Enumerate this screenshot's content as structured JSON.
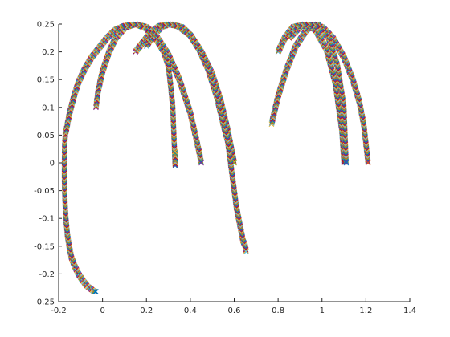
{
  "chart_data": {
    "type": "scatter",
    "title": "",
    "xlabel": "",
    "ylabel": "",
    "xlim": [
      -0.2,
      1.4
    ],
    "ylim": [
      -0.25,
      0.25
    ],
    "xticks": [
      "-0.2",
      "0",
      "0.2",
      "0.4",
      "0.6",
      "0.8",
      "1",
      "1.2",
      "1.4"
    ],
    "yticks": [
      "-0.25",
      "-0.2",
      "-0.15",
      "-0.1",
      "-0.05",
      "0",
      "0.05",
      "0.1",
      "0.15",
      "0.2",
      "0.25"
    ],
    "grid": false,
    "legend": "none",
    "marker": "x",
    "marker_colors": [
      "#0072BD",
      "#D95319",
      "#EDB120",
      "#7E2F8E",
      "#77AC30",
      "#4DBEEE",
      "#A2142F"
    ],
    "axis_color": "#262626",
    "series": [
      {
        "x": [
          -0.17,
          -0.173,
          -0.174,
          -0.174,
          -0.172,
          -0.169,
          -0.165,
          -0.16,
          -0.152,
          -0.142,
          -0.128,
          -0.11,
          -0.09,
          -0.07,
          -0.05,
          -0.04,
          -0.03
        ],
        "y": [
          0.05,
          0.03,
          0.0,
          -0.03,
          -0.06,
          -0.09,
          -0.11,
          -0.13,
          -0.15,
          -0.17,
          -0.185,
          -0.2,
          -0.212,
          -0.222,
          -0.228,
          -0.231,
          -0.232
        ]
      },
      {
        "x": [
          -0.17,
          -0.16,
          -0.15,
          -0.13,
          -0.11,
          -0.08,
          -0.05,
          -0.02,
          0.02,
          0.06,
          0.1,
          0.15,
          0.2,
          0.25,
          0.28,
          0.3,
          0.31,
          0.32,
          0.325,
          0.33
        ],
        "y": [
          0.05,
          0.07,
          0.09,
          0.12,
          0.145,
          0.17,
          0.19,
          0.205,
          0.225,
          0.24,
          0.247,
          0.25,
          0.242,
          0.22,
          0.2,
          0.175,
          0.14,
          0.1,
          0.05,
          0.0
        ]
      },
      {
        "x": [
          0.33,
          0.331,
          0.332,
          0.33
        ],
        "y": [
          0.0,
          -0.005,
          0.01,
          0.02
        ]
      },
      {
        "x": [
          -0.03,
          -0.02,
          0.0,
          0.03,
          0.06,
          0.1,
          0.15,
          0.2,
          0.25,
          0.3,
          0.35,
          0.4,
          0.42,
          0.44,
          0.45
        ],
        "y": [
          0.1,
          0.13,
          0.165,
          0.2,
          0.225,
          0.243,
          0.25,
          0.245,
          0.225,
          0.195,
          0.15,
          0.09,
          0.055,
          0.02,
          0.0
        ]
      },
      {
        "x": [
          0.15,
          0.18,
          0.22,
          0.26,
          0.3,
          0.35,
          0.4,
          0.45,
          0.5,
          0.54,
          0.57,
          0.59,
          0.6
        ],
        "y": [
          0.2,
          0.215,
          0.235,
          0.247,
          0.25,
          0.245,
          0.23,
          0.2,
          0.16,
          0.11,
          0.06,
          0.02,
          0.0
        ]
      },
      {
        "x": [
          0.2,
          0.23,
          0.27,
          0.31,
          0.36,
          0.4,
          0.44,
          0.48,
          0.52,
          0.55,
          0.57,
          0.58,
          0.59,
          0.6,
          0.61,
          0.62,
          0.63,
          0.64,
          0.65,
          0.655
        ],
        "y": [
          0.21,
          0.23,
          0.245,
          0.25,
          0.245,
          0.23,
          0.205,
          0.17,
          0.12,
          0.07,
          0.04,
          0.01,
          -0.02,
          -0.05,
          -0.08,
          -0.1,
          -0.12,
          -0.14,
          -0.15,
          -0.16
        ]
      },
      {
        "x": [
          0.8,
          0.83,
          0.87,
          0.92,
          0.97,
          1.02,
          1.06,
          1.09,
          1.1
        ],
        "y": [
          0.2,
          0.225,
          0.245,
          0.25,
          0.24,
          0.205,
          0.145,
          0.06,
          0.0
        ]
      },
      {
        "x": [
          0.77,
          0.8,
          0.84,
          0.88,
          0.93,
          0.98,
          1.03,
          1.07,
          1.1,
          1.11
        ],
        "y": [
          0.07,
          0.12,
          0.17,
          0.21,
          0.24,
          0.25,
          0.225,
          0.175,
          0.1,
          0.0
        ]
      },
      {
        "x": [
          0.85,
          0.9,
          0.95,
          1.0,
          1.05,
          1.1,
          1.14,
          1.17,
          1.19,
          1.2,
          1.21
        ],
        "y": [
          0.225,
          0.245,
          0.25,
          0.245,
          0.225,
          0.19,
          0.15,
          0.11,
          0.07,
          0.035,
          0.0
        ]
      }
    ]
  }
}
